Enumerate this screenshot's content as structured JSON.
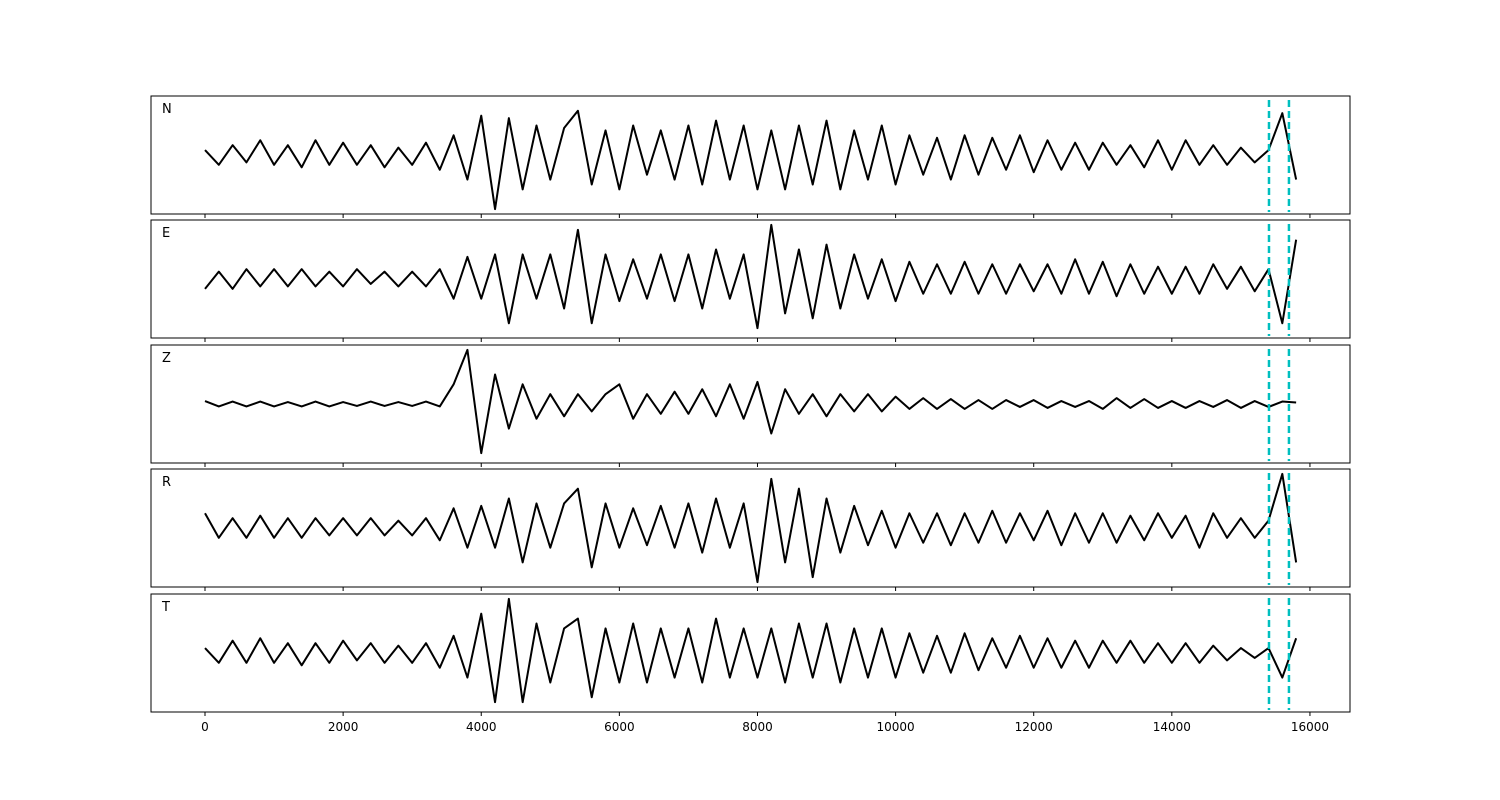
{
  "chart_data": {
    "type": "line",
    "x": [
      0,
      200,
      400,
      600,
      800,
      1000,
      1200,
      1400,
      1600,
      1800,
      2000,
      2200,
      2400,
      2600,
      2800,
      3000,
      3200,
      3400,
      3600,
      3800,
      4000,
      4200,
      4400,
      4600,
      4800,
      5000,
      5200,
      5400,
      5600,
      5800,
      6000,
      6200,
      6400,
      6600,
      6800,
      7000,
      7200,
      7400,
      7600,
      7800,
      8000,
      8200,
      8400,
      8600,
      8800,
      9000,
      9200,
      9400,
      9600,
      9800,
      10000,
      10200,
      10400,
      10600,
      10800,
      11000,
      11200,
      11400,
      11600,
      11800,
      12000,
      12200,
      12400,
      12600,
      12800,
      13000,
      13200,
      13400,
      13600,
      13800,
      14000,
      14200,
      14400,
      14600,
      14800,
      15000,
      15200,
      15400,
      15600,
      15800
    ],
    "xlim": [
      -782,
      16580
    ],
    "xticks": [
      0,
      2000,
      4000,
      6000,
      8000,
      10000,
      12000,
      14000,
      16000
    ],
    "ylim": [
      -1.2,
      1.2
    ],
    "series": [
      {
        "name": "N",
        "color": "#000000",
        "values": [
          0.1,
          -0.2,
          0.2,
          -0.15,
          0.3,
          -0.2,
          0.2,
          -0.25,
          0.3,
          -0.2,
          0.25,
          -0.2,
          0.2,
          -0.25,
          0.15,
          -0.2,
          0.25,
          -0.3,
          0.4,
          -0.5,
          0.8,
          -1.1,
          0.75,
          -0.7,
          0.6,
          -0.5,
          0.55,
          0.9,
          -0.6,
          0.5,
          -0.7,
          0.6,
          -0.4,
          0.5,
          -0.5,
          0.6,
          -0.6,
          0.7,
          -0.5,
          0.6,
          -0.7,
          0.5,
          -0.7,
          0.6,
          -0.6,
          0.7,
          -0.7,
          0.5,
          -0.5,
          0.6,
          -0.6,
          0.4,
          -0.4,
          0.35,
          -0.5,
          0.4,
          -0.4,
          0.35,
          -0.3,
          0.4,
          -0.35,
          0.3,
          -0.3,
          0.25,
          -0.3,
          0.25,
          -0.2,
          0.2,
          -0.25,
          0.3,
          -0.3,
          0.3,
          -0.2,
          0.2,
          -0.2,
          0.15,
          -0.15,
          0.1,
          0.85,
          -0.5
        ]
      },
      {
        "name": "E",
        "color": "#000000",
        "values": [
          -0.2,
          0.15,
          -0.2,
          0.2,
          -0.15,
          0.2,
          -0.15,
          0.2,
          -0.15,
          0.15,
          -0.15,
          0.2,
          -0.1,
          0.15,
          -0.15,
          0.15,
          -0.15,
          0.2,
          -0.4,
          0.45,
          -0.4,
          0.5,
          -0.9,
          0.5,
          -0.4,
          0.5,
          -0.6,
          1.0,
          -0.9,
          0.5,
          -0.45,
          0.4,
          -0.4,
          0.5,
          -0.45,
          0.5,
          -0.6,
          0.6,
          -0.4,
          0.5,
          -1.0,
          1.1,
          -0.7,
          0.6,
          -0.8,
          0.7,
          -0.6,
          0.5,
          -0.4,
          0.4,
          -0.45,
          0.35,
          -0.3,
          0.3,
          -0.3,
          0.35,
          -0.3,
          0.3,
          -0.3,
          0.3,
          -0.25,
          0.3,
          -0.3,
          0.4,
          -0.3,
          0.35,
          -0.35,
          0.3,
          -0.3,
          0.25,
          -0.3,
          0.25,
          -0.3,
          0.3,
          -0.2,
          0.25,
          -0.25,
          0.2,
          -0.9,
          0.8
        ]
      },
      {
        "name": "Z",
        "color": "#000000",
        "values": [
          0.06,
          -0.05,
          0.05,
          -0.05,
          0.05,
          -0.05,
          0.04,
          -0.05,
          0.05,
          -0.05,
          0.04,
          -0.04,
          0.05,
          -0.04,
          0.04,
          -0.04,
          0.05,
          -0.05,
          0.4,
          1.1,
          -1.0,
          0.6,
          -0.5,
          0.4,
          -0.3,
          0.2,
          -0.25,
          0.2,
          -0.15,
          0.2,
          0.4,
          -0.3,
          0.2,
          -0.2,
          0.25,
          -0.2,
          0.3,
          -0.25,
          0.4,
          -0.3,
          0.45,
          -0.6,
          0.3,
          -0.2,
          0.2,
          -0.25,
          0.2,
          -0.15,
          0.2,
          -0.15,
          0.15,
          -0.1,
          0.12,
          -0.1,
          0.1,
          -0.1,
          0.08,
          -0.1,
          0.08,
          -0.06,
          0.08,
          -0.08,
          0.06,
          -0.06,
          0.06,
          -0.1,
          0.12,
          -0.08,
          0.1,
          -0.08,
          0.06,
          -0.08,
          0.06,
          -0.06,
          0.08,
          -0.08,
          0.06,
          -0.06,
          0.05,
          0.03
        ]
      },
      {
        "name": "R",
        "color": "#000000",
        "values": [
          0.3,
          -0.2,
          0.2,
          -0.2,
          0.25,
          -0.2,
          0.2,
          -0.2,
          0.2,
          -0.15,
          0.2,
          -0.15,
          0.2,
          -0.15,
          0.15,
          -0.15,
          0.2,
          -0.25,
          0.4,
          -0.4,
          0.45,
          -0.4,
          0.6,
          -0.7,
          0.5,
          -0.4,
          0.5,
          0.8,
          -0.8,
          0.5,
          -0.4,
          0.4,
          -0.35,
          0.45,
          -0.4,
          0.5,
          -0.5,
          0.6,
          -0.4,
          0.5,
          -1.1,
          1.0,
          -0.7,
          0.8,
          -1.0,
          0.6,
          -0.5,
          0.45,
          -0.35,
          0.35,
          -0.4,
          0.3,
          -0.3,
          0.3,
          -0.35,
          0.3,
          -0.3,
          0.35,
          -0.3,
          0.3,
          -0.25,
          0.35,
          -0.35,
          0.3,
          -0.3,
          0.3,
          -0.3,
          0.25,
          -0.25,
          0.3,
          -0.2,
          0.25,
          -0.4,
          0.3,
          -0.2,
          0.2,
          -0.2,
          0.15,
          1.1,
          -0.7
        ]
      },
      {
        "name": "T",
        "color": "#000000",
        "values": [
          0.1,
          -0.2,
          0.25,
          -0.2,
          0.3,
          -0.2,
          0.2,
          -0.25,
          0.2,
          -0.2,
          0.25,
          -0.15,
          0.2,
          -0.2,
          0.15,
          -0.2,
          0.2,
          -0.3,
          0.35,
          -0.5,
          0.8,
          -1.0,
          1.1,
          -1.0,
          0.6,
          -0.6,
          0.5,
          0.7,
          -0.9,
          0.5,
          -0.6,
          0.6,
          -0.6,
          0.5,
          -0.5,
          0.5,
          -0.6,
          0.7,
          -0.5,
          0.5,
          -0.5,
          0.5,
          -0.6,
          0.6,
          -0.5,
          0.6,
          -0.6,
          0.5,
          -0.5,
          0.5,
          -0.5,
          0.4,
          -0.4,
          0.35,
          -0.4,
          0.4,
          -0.35,
          0.3,
          -0.3,
          0.35,
          -0.3,
          0.3,
          -0.3,
          0.25,
          -0.3,
          0.25,
          -0.2,
          0.25,
          -0.2,
          0.2,
          -0.2,
          0.2,
          -0.2,
          0.15,
          -0.15,
          0.1,
          -0.1,
          0.1,
          -0.5,
          0.3
        ]
      }
    ],
    "vlines": {
      "values": [
        15407,
        15696
      ],
      "color": "#00bfbf"
    }
  }
}
